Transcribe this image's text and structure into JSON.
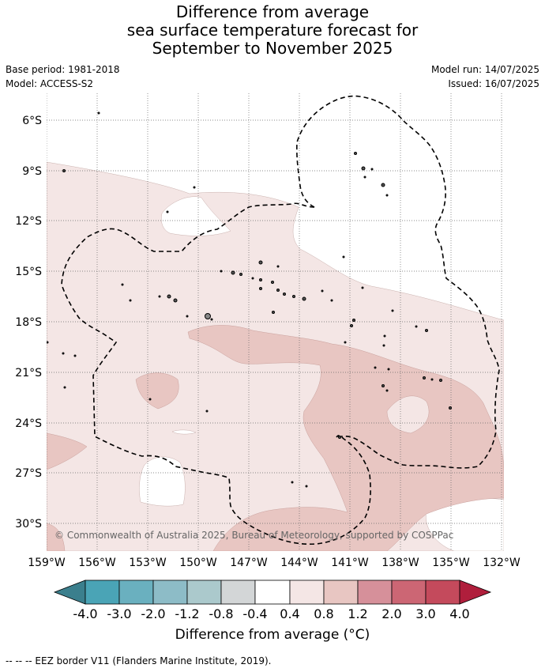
{
  "title": {
    "line1": "Difference from average",
    "line2": "sea surface temperature forecast for",
    "line3": "September to November 2025"
  },
  "meta": {
    "base_period": "Base period: 1981-2018",
    "model": "Model: ACCESS-S2",
    "model_run": "Model run: 14/07/2025",
    "issued": "Issued: 16/07/2025"
  },
  "map": {
    "copyright": "© Commonwealth of Australia 2025, Bureau of Meteorology, supported by COSPPac",
    "lat_labels": [
      "6°S",
      "9°S",
      "12°S",
      "15°S",
      "18°S",
      "21°S",
      "24°S",
      "27°S",
      "30°S"
    ],
    "lon_labels": [
      "159°W",
      "156°W",
      "153°W",
      "150°W",
      "147°W",
      "144°W",
      "141°W",
      "138°W",
      "135°W",
      "132°W"
    ]
  },
  "legend": {
    "ticks": [
      "-4.0",
      "-3.0",
      "-2.0",
      "-1.2",
      "-0.8",
      "-0.4",
      "0.4",
      "0.8",
      "1.2",
      "2.0",
      "3.0",
      "4.0"
    ],
    "label": "Difference from average (°C)",
    "colors": [
      "#3b7f8d",
      "#4aa4b6",
      "#6ab0bf",
      "#8dbcc7",
      "#abc9cc",
      "#d3d6d7",
      "#ffffff",
      "#f4e6e5",
      "#e8c6c2",
      "#d6909a",
      "#cc6674",
      "#c44a5c",
      "#b01e3c"
    ]
  },
  "footer": "--  --  -- EEZ border V11 (Flanders Marine Institute, 2019)."
}
